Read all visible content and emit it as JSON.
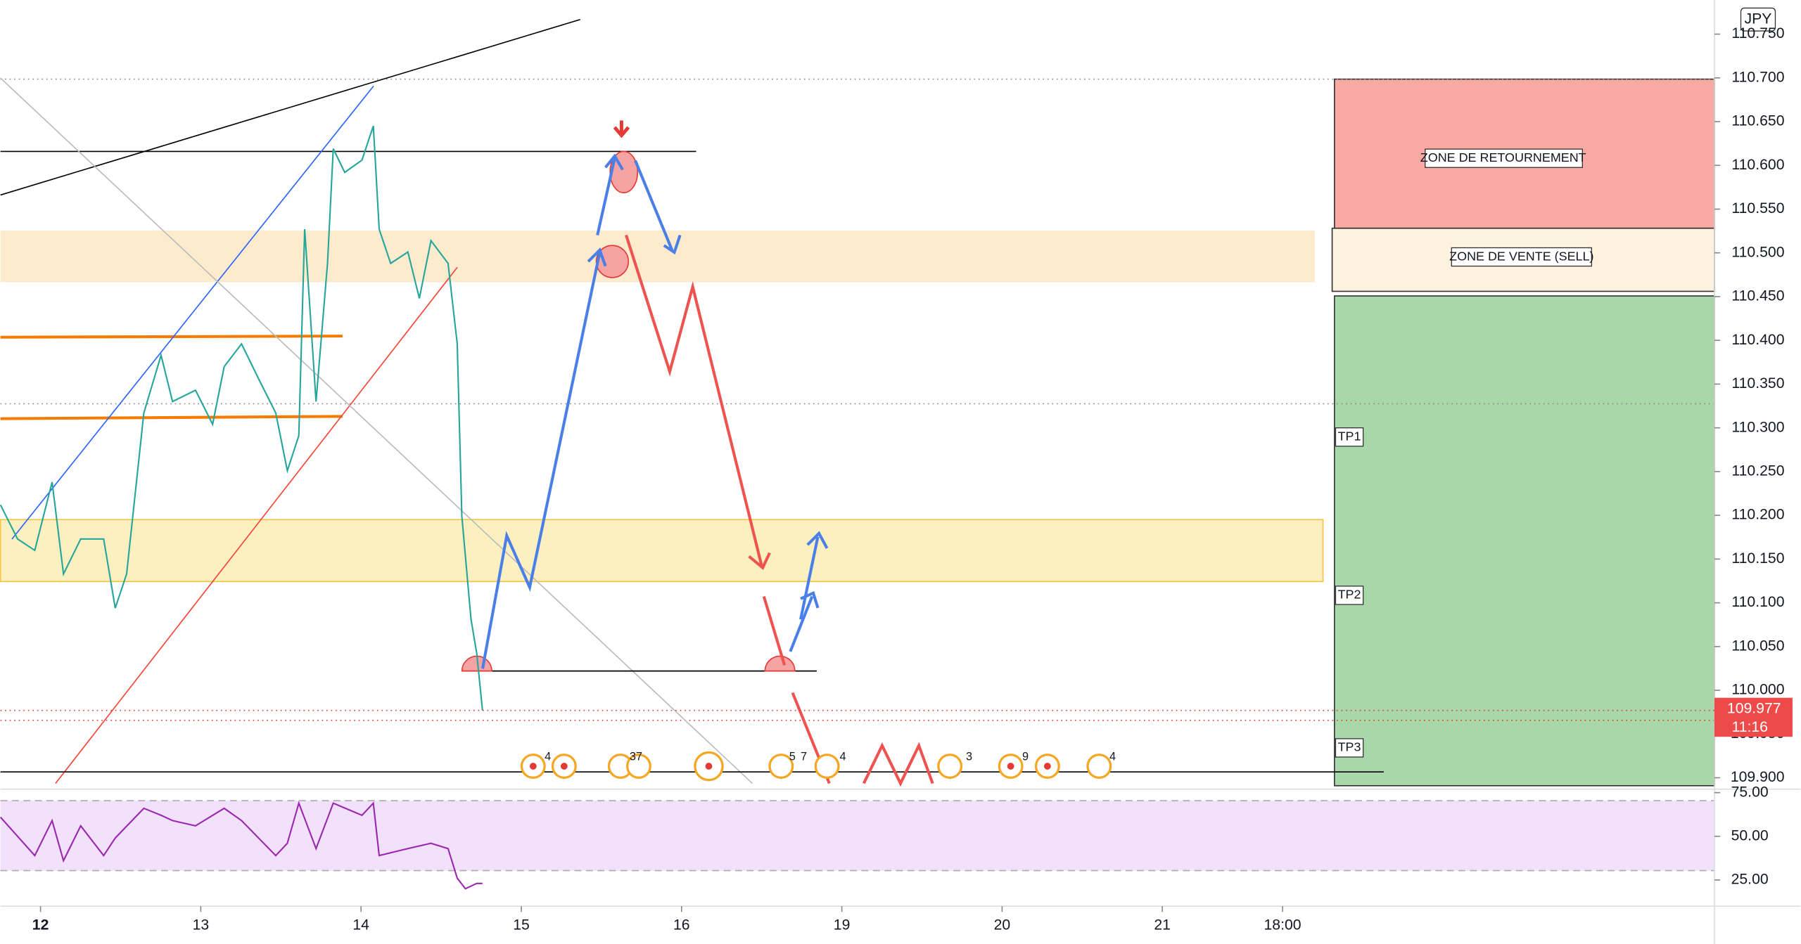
{
  "chart_data": [
    {
      "type": "line",
      "currency": "JPY",
      "color": "#26a69a",
      "x": [
        -0.25,
        -0.143,
        -0.036,
        0.072,
        0.143,
        0.251,
        0.394,
        0.466,
        0.537,
        0.645,
        0.752,
        0.824,
        0.967,
        1.074,
        1.146,
        1.254,
        1.361,
        1.468,
        1.54,
        1.612,
        1.648,
        1.719,
        1.791,
        1.827,
        1.898,
        2.006,
        2.077,
        2.113,
        2.185,
        2.292,
        2.364,
        2.436,
        2.543,
        2.6,
        2.629,
        2.686,
        2.722,
        2.758
      ],
      "values": [
        110.212,
        110.173,
        110.16,
        110.238,
        110.133,
        110.173,
        110.173,
        110.094,
        110.133,
        110.317,
        110.383,
        110.33,
        110.343,
        110.304,
        110.37,
        110.396,
        110.356,
        110.317,
        110.251,
        110.291,
        110.527,
        110.33,
        110.488,
        110.619,
        110.592,
        110.606,
        110.645,
        110.527,
        110.488,
        110.501,
        110.448,
        110.514,
        110.488,
        110.396,
        110.199,
        110.081,
        110.042,
        109.977
      ],
      "xlim": [
        -0.25,
        10.445
      ],
      "xticks": [
        {
          "value": 0,
          "label": "12"
        },
        {
          "value": 1,
          "label": "13"
        },
        {
          "value": 2,
          "label": "14"
        },
        {
          "value": 3,
          "label": "15"
        },
        {
          "value": 4,
          "label": "16"
        },
        {
          "value": 5,
          "label": "19"
        },
        {
          "value": 6,
          "label": "20"
        },
        {
          "value": 7,
          "label": "21"
        },
        {
          "value": 7.75,
          "label": "18:00"
        }
      ],
      "ylim": [
        109.887,
        110.789
      ],
      "yticks": [
        {
          "value": 109.9,
          "label": "109.900"
        },
        {
          "value": 109.95,
          "label": "109.950"
        },
        {
          "value": 110,
          "label": "110.000"
        },
        {
          "value": 110.05,
          "label": "110.050"
        },
        {
          "value": 110.1,
          "label": "110.100"
        },
        {
          "value": 110.15,
          "label": "110.150"
        },
        {
          "value": 110.2,
          "label": "110.200"
        },
        {
          "value": 110.25,
          "label": "110.250"
        },
        {
          "value": 110.3,
          "label": "110.300"
        },
        {
          "value": 110.35,
          "label": "110.350"
        },
        {
          "value": 110.4,
          "label": "110.400"
        },
        {
          "value": 110.45,
          "label": "110.450"
        },
        {
          "value": 110.5,
          "label": "110.500"
        },
        {
          "value": 110.55,
          "label": "110.550"
        },
        {
          "value": 110.6,
          "label": "110.600"
        },
        {
          "value": 110.65,
          "label": "110.650"
        },
        {
          "value": 110.7,
          "label": "110.700"
        },
        {
          "value": 110.75,
          "label": "110.750"
        }
      ],
      "last_price": 109.977,
      "countdown": "11:16",
      "zones": [
        "ZONE DE RETOURNEMENT",
        "ZONE DE VENTE (SELL)"
      ],
      "targets": [
        "TP1",
        "TP2",
        "TP3"
      ],
      "event_counts": [
        4,
        37,
        5,
        7,
        4,
        3,
        9,
        4
      ]
    },
    {
      "type": "line",
      "color": "#9c27b0",
      "x": [
        -0.25,
        -0.036,
        0.072,
        0.143,
        0.251,
        0.394,
        0.466,
        0.645,
        0.752,
        0.824,
        0.967,
        1.146,
        1.254,
        1.468,
        1.54,
        1.612,
        1.719,
        1.827,
        2.006,
        2.077,
        2.113,
        2.292,
        2.436,
        2.543,
        2.6,
        2.651,
        2.722,
        2.758
      ],
      "values": [
        61,
        39,
        59,
        36,
        56,
        39,
        49,
        66,
        62,
        59,
        56,
        66,
        59,
        39,
        46,
        69,
        43,
        69,
        62,
        69,
        39,
        43,
        46,
        43,
        26,
        20,
        23,
        23
      ],
      "ylim": [
        10,
        77
      ],
      "yticks": [
        {
          "value": 25,
          "label": "25.00"
        },
        {
          "value": 50,
          "label": "50.00"
        },
        {
          "value": 75,
          "label": "75.00"
        }
      ]
    }
  ]
}
